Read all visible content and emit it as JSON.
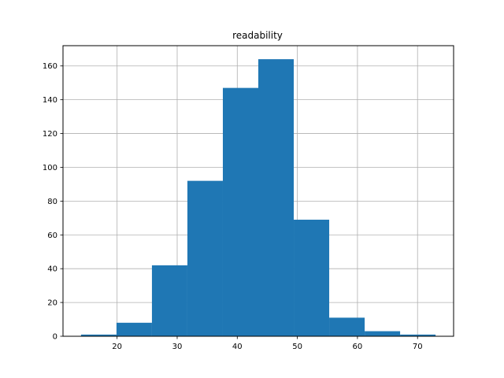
{
  "chart_data": {
    "type": "bar",
    "title": "readability",
    "xlabel": "",
    "ylabel": "",
    "xlim": [
      11,
      76
    ],
    "ylim": [
      0,
      172
    ],
    "grid": true,
    "bin_edges": [
      14.0,
      19.9,
      25.8,
      31.7,
      37.6,
      43.5,
      49.4,
      55.3,
      61.2,
      67.1,
      73.0
    ],
    "values": [
      1,
      8,
      42,
      92,
      147,
      164,
      69,
      11,
      3,
      1
    ],
    "x_ticks": [
      20,
      30,
      40,
      50,
      60,
      70
    ],
    "x_tick_labels": [
      "20",
      "30",
      "40",
      "50",
      "60",
      "70"
    ],
    "y_ticks": [
      0,
      20,
      40,
      60,
      80,
      100,
      120,
      140,
      160
    ],
    "y_tick_labels": [
      "0",
      "20",
      "40",
      "60",
      "80",
      "100",
      "120",
      "140",
      "160"
    ],
    "bar_color": "#1f77b4",
    "grid_color": "#b0b0b0"
  }
}
